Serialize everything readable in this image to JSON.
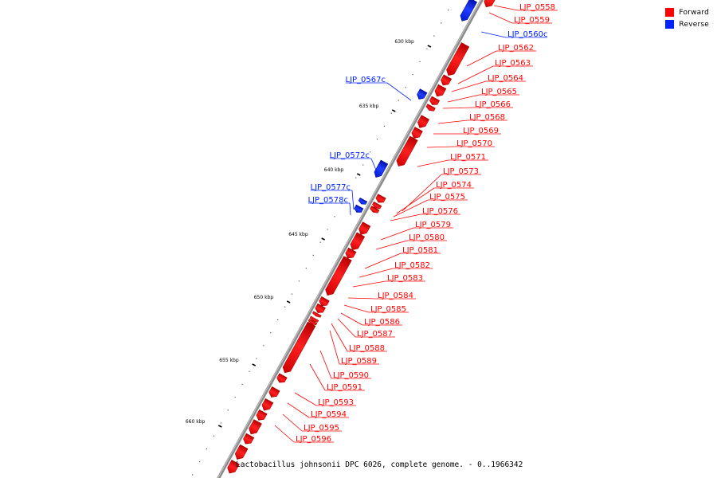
{
  "legend": {
    "forward": {
      "label": "Forward",
      "color": "#ff0000"
    },
    "reverse": {
      "label": "Reverse",
      "color": "#0022ff"
    }
  },
  "caption": "Lactobacillus johnsonii DPC 6026, complete genome. - 0..1966342",
  "ticks": [
    "630 kbp",
    "635 kbp",
    "640 kbp",
    "645 kbp",
    "650 kbp",
    "655 kbp",
    "660 kbp"
  ],
  "genes": {
    "forward": [
      "LJP_0558",
      "LJP_0559",
      "LJP_0562",
      "LJP_0563",
      "LJP_0564",
      "LJP_0565",
      "LJP_0566",
      "LJP_0568",
      "LJP_0569",
      "LJP_0570",
      "LJP_0571",
      "LJP_0573",
      "LJP_0574",
      "LJP_0575",
      "LJP_0576",
      "LJP_0579",
      "LJP_0580",
      "LJP_0581",
      "LJP_0582",
      "LJP_0583",
      "LJP_0584",
      "LJP_0585",
      "LJP_0586",
      "LJP_0587",
      "LJP_0588",
      "LJP_0589",
      "LJP_0590",
      "LJP_0591",
      "LJP_0593",
      "LJP_0594",
      "LJP_0595",
      "LJP_0596"
    ],
    "reverse": [
      "LJP_0560c",
      "LJP_0567c",
      "LJP_0572c",
      "LJP_0577c",
      "LJP_0578c"
    ]
  }
}
